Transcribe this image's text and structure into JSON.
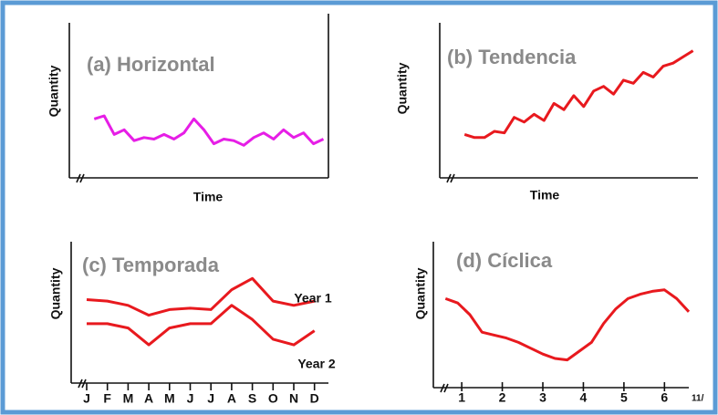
{
  "chart_data": [
    {
      "type": "line",
      "title": "(a) Horizontal",
      "y_label": "Quantity",
      "x_label": "Time",
      "x": [
        1,
        2,
        3,
        4,
        5,
        6,
        7,
        8,
        9,
        10,
        11,
        12,
        13,
        14,
        15,
        16,
        17,
        18,
        19,
        20,
        21,
        22,
        23,
        24
      ],
      "xlim": [
        -1.5,
        24.5
      ],
      "ylim": [
        0,
        10
      ],
      "series": [
        {
          "color": "#e61ee6",
          "values": [
            3.8,
            4.0,
            2.8,
            3.1,
            2.4,
            2.6,
            2.5,
            2.8,
            2.5,
            2.9,
            3.8,
            3.1,
            2.2,
            2.5,
            2.4,
            2.1,
            2.6,
            2.9,
            2.5,
            3.1,
            2.6,
            2.9,
            2.2,
            2.5
          ]
        }
      ]
    },
    {
      "type": "line",
      "title": "(b) Tendencia",
      "y_label": "Quantity",
      "x_label": "Time",
      "x": [
        1,
        2,
        3,
        4,
        5,
        6,
        7,
        8,
        9,
        10,
        11,
        12,
        13,
        14,
        15,
        16,
        17,
        18,
        19,
        20,
        21,
        22,
        23,
        24
      ],
      "xlim": [
        -1.5,
        24.5
      ],
      "ylim": [
        0,
        10
      ],
      "series": [
        {
          "color": "#e8191e",
          "values": [
            2.8,
            2.6,
            2.6,
            3.0,
            2.9,
            3.9,
            3.6,
            4.1,
            3.7,
            4.8,
            4.4,
            5.3,
            4.6,
            5.6,
            5.9,
            5.4,
            6.3,
            6.1,
            6.8,
            6.5,
            7.2,
            7.4,
            7.8,
            8.2
          ]
        }
      ]
    },
    {
      "type": "line",
      "title": "(c) Temporada",
      "y_label": "Quantity",
      "categories": [
        "J",
        "F",
        "M",
        "A",
        "M",
        "J",
        "J",
        "A",
        "S",
        "O",
        "N",
        "D"
      ],
      "ylim": [
        0,
        10
      ],
      "series": [
        {
          "name": "Year 1",
          "color": "#e8191e",
          "values": [
            5.9,
            5.8,
            5.5,
            4.8,
            5.2,
            5.3,
            5.2,
            6.6,
            7.4,
            5.8,
            5.5,
            5.8
          ]
        },
        {
          "name": "Year 2",
          "color": "#e8191e",
          "values": [
            4.2,
            4.2,
            3.9,
            2.7,
            3.9,
            4.2,
            4.2,
            5.5,
            4.5,
            3.1,
            2.7,
            3.7
          ]
        }
      ]
    },
    {
      "type": "line",
      "title": "(d) Cíclica",
      "y_label": "Quantity",
      "annotation": "11/",
      "x": [
        0.6,
        0.9,
        1.2,
        1.5,
        1.8,
        2.1,
        2.4,
        2.7,
        3.0,
        3.3,
        3.6,
        3.9,
        4.2,
        4.5,
        4.8,
        5.1,
        5.4,
        5.7,
        6.0,
        6.3,
        6.6
      ],
      "xlim": [
        0.3,
        6.6
      ],
      "xticks": [
        1,
        2,
        3,
        4,
        5,
        6
      ],
      "ylim": [
        0,
        10
      ],
      "series": [
        {
          "color": "#e8191e",
          "values": [
            6.1,
            5.8,
            5.0,
            3.8,
            3.6,
            3.4,
            3.1,
            2.7,
            2.3,
            2.0,
            1.9,
            2.5,
            3.1,
            4.4,
            5.4,
            6.1,
            6.4,
            6.6,
            6.7,
            6.1,
            5.2
          ]
        }
      ]
    }
  ]
}
